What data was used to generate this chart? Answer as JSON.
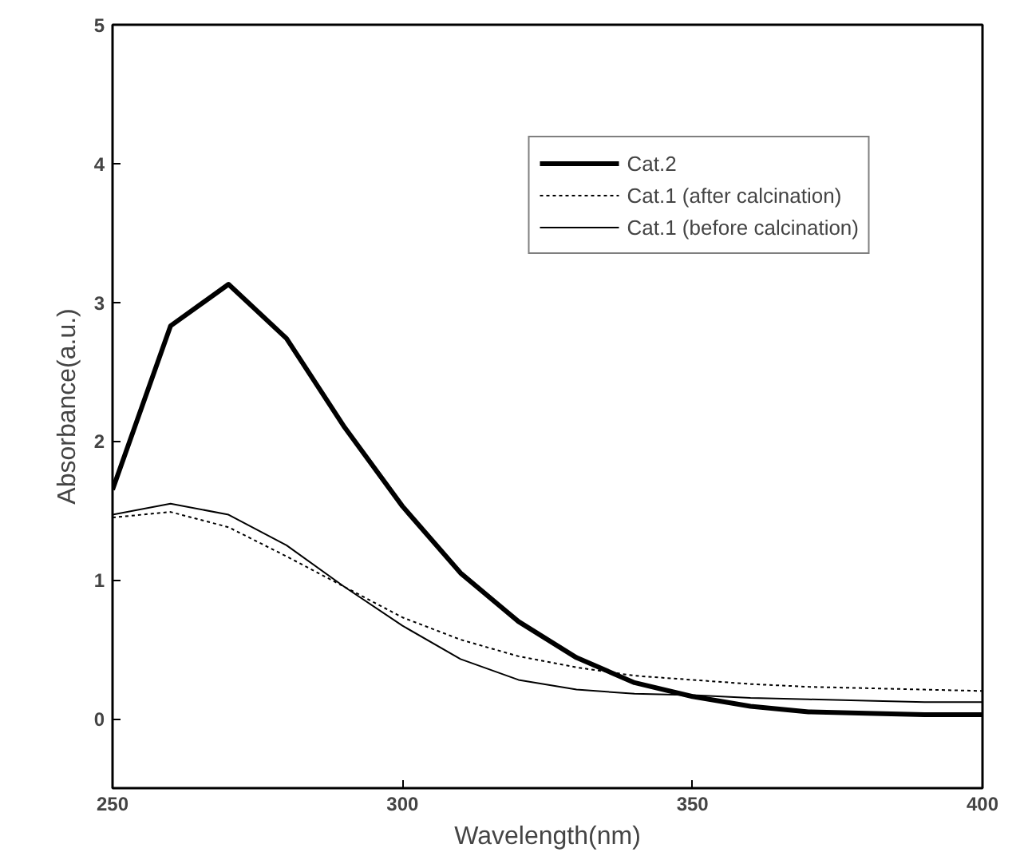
{
  "chart_data": {
    "type": "line",
    "xlabel": "Wavelength(nm)",
    "ylabel": "Absorbance(a.u.)",
    "x": [
      250,
      260,
      270,
      280,
      290,
      300,
      310,
      320,
      330,
      340,
      350,
      360,
      370,
      380,
      390,
      400
    ],
    "xlim": [
      250,
      400
    ],
    "xticks": [
      250,
      300,
      350,
      400
    ],
    "ylim": [
      -0.5,
      5
    ],
    "yticks": [
      0,
      1,
      2,
      3,
      4,
      5
    ],
    "grid": false,
    "legend": "top right",
    "marker": "none",
    "series": [
      {
        "name": "Cat.2",
        "color": "#000000",
        "line_style": "solid",
        "values": [
          1.65,
          2.83,
          3.13,
          2.74,
          2.1,
          1.53,
          1.05,
          0.7,
          0.44,
          0.26,
          0.16,
          0.09,
          0.05,
          0.04,
          0.03,
          0.03
        ]
      },
      {
        "name": "Cat.1 (after calcination)",
        "color": "#000000",
        "line_style": "dotted",
        "values": [
          1.45,
          1.49,
          1.38,
          1.17,
          0.95,
          0.73,
          0.57,
          0.45,
          0.37,
          0.31,
          0.28,
          0.25,
          0.23,
          0.22,
          0.21,
          0.2
        ]
      },
      {
        "name": "Cat.1 (before calcination)",
        "color": "#000000",
        "line_style": "solid",
        "values": [
          1.47,
          1.55,
          1.47,
          1.25,
          0.95,
          0.67,
          0.43,
          0.28,
          0.21,
          0.18,
          0.17,
          0.15,
          0.14,
          0.13,
          0.12,
          0.12
        ]
      }
    ]
  }
}
